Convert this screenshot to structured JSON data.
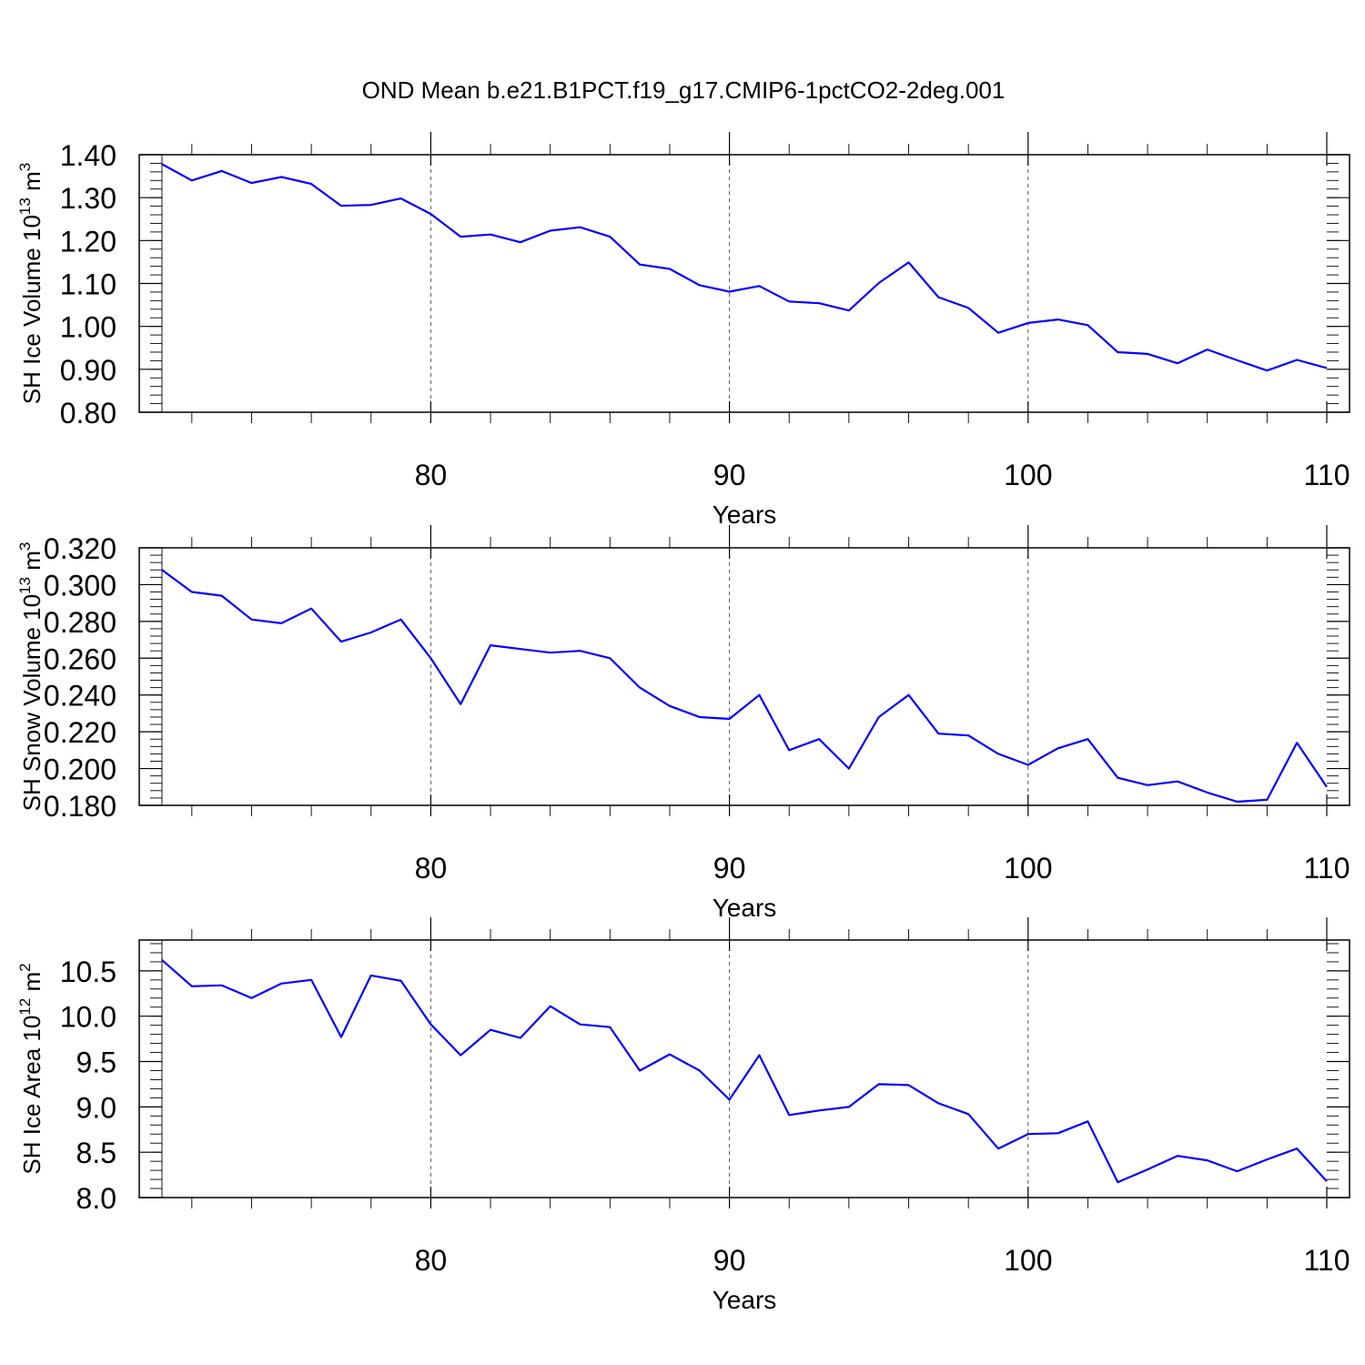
{
  "title": "OND Mean b.e21.B1PCT.f19_g17.CMIP6-1pctCO2-2deg.001",
  "colors": {
    "line": "#0000ff",
    "axis": "#000000",
    "grid": "#555555"
  },
  "chart_data": [
    {
      "type": "line",
      "ylabel": "SH Ice Volume 10",
      "ylabel_exp": "13",
      "ylabel_unit": " m",
      "ylabel_unit_exp": "3",
      "xlabel": "Years",
      "xlim": [
        71,
        110
      ],
      "ylim": [
        0.8,
        1.4
      ],
      "xticks": [
        80,
        90,
        100,
        110
      ],
      "xtick_labels": [
        "80",
        "90",
        "100",
        "110"
      ],
      "yticks": [
        0.8,
        0.9,
        1.0,
        1.1,
        1.2,
        1.3,
        1.4
      ],
      "ytick_labels": [
        "0.80",
        "0.90",
        "1.00",
        "1.10",
        "1.20",
        "1.30",
        "1.40"
      ],
      "yminor_step": 0.02,
      "grid": "vertical dashed at 80, 90, 100",
      "x": [
        71,
        72,
        73,
        74,
        75,
        76,
        77,
        78,
        79,
        80,
        81,
        82,
        83,
        84,
        85,
        86,
        87,
        88,
        89,
        90,
        91,
        92,
        93,
        94,
        95,
        96,
        97,
        98,
        99,
        100,
        101,
        102,
        103,
        104,
        105,
        106,
        107,
        108,
        109,
        110
      ],
      "values": [
        1.378,
        1.34,
        1.362,
        1.334,
        1.348,
        1.332,
        1.281,
        1.283,
        1.298,
        1.262,
        1.209,
        1.214,
        1.196,
        1.223,
        1.231,
        1.209,
        1.144,
        1.134,
        1.096,
        1.081,
        1.094,
        1.058,
        1.054,
        1.037,
        1.101,
        1.149,
        1.068,
        1.043,
        0.985,
        1.008,
        1.016,
        1.003,
        0.94,
        0.936,
        0.914,
        0.946,
        0.921,
        0.897,
        0.922,
        0.903
      ]
    },
    {
      "type": "line",
      "ylabel": "SH Snow Volume 10",
      "ylabel_exp": "13",
      "ylabel_unit": " m",
      "ylabel_unit_exp": "3",
      "xlabel": "Years",
      "xlim": [
        71,
        110
      ],
      "ylim": [
        0.18,
        0.32
      ],
      "xticks": [
        80,
        90,
        100,
        110
      ],
      "xtick_labels": [
        "80",
        "90",
        "100",
        "110"
      ],
      "yticks": [
        0.18,
        0.2,
        0.22,
        0.24,
        0.26,
        0.28,
        0.3,
        0.32
      ],
      "ytick_labels": [
        "0.180",
        "0.200",
        "0.220",
        "0.240",
        "0.260",
        "0.280",
        "0.300",
        "0.320"
      ],
      "yminor_step": 0.004,
      "grid": "vertical dashed at 80, 90, 100",
      "x": [
        71,
        72,
        73,
        74,
        75,
        76,
        77,
        78,
        79,
        80,
        81,
        82,
        83,
        84,
        85,
        86,
        87,
        88,
        89,
        90,
        91,
        92,
        93,
        94,
        95,
        96,
        97,
        98,
        99,
        100,
        101,
        102,
        103,
        104,
        105,
        106,
        107,
        108,
        109,
        110
      ],
      "values": [
        0.308,
        0.296,
        0.294,
        0.281,
        0.279,
        0.287,
        0.269,
        0.274,
        0.281,
        0.26,
        0.235,
        0.267,
        0.265,
        0.263,
        0.264,
        0.26,
        0.244,
        0.234,
        0.228,
        0.227,
        0.24,
        0.21,
        0.216,
        0.2,
        0.228,
        0.24,
        0.219,
        0.218,
        0.208,
        0.202,
        0.211,
        0.216,
        0.195,
        0.191,
        0.193,
        0.187,
        0.182,
        0.183,
        0.214,
        0.19
      ]
    },
    {
      "type": "line",
      "ylabel": "SH Ice Area 10",
      "ylabel_exp": "12",
      "ylabel_unit": " m",
      "ylabel_unit_exp": "2",
      "xlabel": "Years",
      "xlim": [
        71,
        110
      ],
      "ylim": [
        8.0,
        10.84
      ],
      "xticks": [
        80,
        90,
        100,
        110
      ],
      "xtick_labels": [
        "80",
        "90",
        "100",
        "110"
      ],
      "yticks": [
        8.0,
        8.5,
        9.0,
        9.5,
        10.0,
        10.5
      ],
      "ytick_labels": [
        "8.0",
        "8.5",
        "9.0",
        "9.5",
        "10.0",
        "10.5"
      ],
      "yminor_step": 0.1,
      "grid": "vertical dashed at 80, 90, 100",
      "x": [
        71,
        72,
        73,
        74,
        75,
        76,
        77,
        78,
        79,
        80,
        81,
        82,
        83,
        84,
        85,
        86,
        87,
        88,
        89,
        90,
        91,
        92,
        93,
        94,
        95,
        96,
        97,
        98,
        99,
        100,
        101,
        102,
        103,
        104,
        105,
        106,
        107,
        108,
        109,
        110
      ],
      "values": [
        10.62,
        10.33,
        10.34,
        10.2,
        10.36,
        10.4,
        9.77,
        10.45,
        10.39,
        9.91,
        9.57,
        9.85,
        9.76,
        10.11,
        9.91,
        9.88,
        9.4,
        9.58,
        9.4,
        9.08,
        9.57,
        8.91,
        8.96,
        9.0,
        9.25,
        9.24,
        9.04,
        8.92,
        8.54,
        8.7,
        8.71,
        8.84,
        8.17,
        8.31,
        8.46,
        8.41,
        8.29,
        8.42,
        8.54,
        8.18
      ]
    }
  ]
}
